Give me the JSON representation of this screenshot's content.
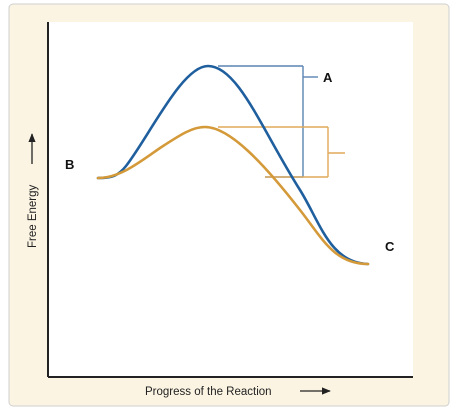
{
  "diagram": {
    "labels": {
      "a": "A",
      "b": "B",
      "c": "C",
      "x_axis": "Progress of the Reaction",
      "y_axis": "Free Energy"
    },
    "colors": {
      "panel_bg": "#fbf4e3",
      "plot_bg": "#ffffff",
      "axis": "#222222",
      "uncatalyzed": "#1f5f9e",
      "catalyzed": "#d49a3a",
      "bracket_a": "#5b84b3",
      "bracket_d": "#e0a95a"
    }
  }
}
